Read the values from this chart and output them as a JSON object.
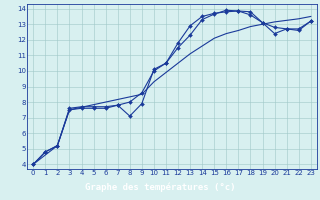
{
  "xlabel": "Graphe des températures (°c)",
  "bg_color": "#d8f0f0",
  "line_color": "#1a3a9a",
  "xlim": [
    -0.5,
    23.5
  ],
  "ylim": [
    3.7,
    14.3
  ],
  "xticks": [
    0,
    1,
    2,
    3,
    4,
    5,
    6,
    7,
    8,
    9,
    10,
    11,
    12,
    13,
    14,
    15,
    16,
    17,
    18,
    19,
    20,
    21,
    22,
    23
  ],
  "yticks": [
    4,
    5,
    6,
    7,
    8,
    9,
    10,
    11,
    12,
    13,
    14
  ],
  "line1_x": [
    0,
    1,
    2,
    3,
    4,
    5,
    6,
    7,
    8,
    9,
    10,
    11,
    12,
    13,
    14,
    15,
    16,
    17,
    18,
    19,
    20,
    21,
    22,
    23
  ],
  "line1_y": [
    4.0,
    4.8,
    5.2,
    7.6,
    7.7,
    7.7,
    7.7,
    7.8,
    7.1,
    7.9,
    10.1,
    10.5,
    11.8,
    12.9,
    13.5,
    13.7,
    13.8,
    13.85,
    13.8,
    13.1,
    12.8,
    12.7,
    12.7,
    13.2
  ],
  "line2_x": [
    0,
    1,
    2,
    3,
    4,
    5,
    6,
    7,
    8,
    9,
    10,
    11,
    12,
    13,
    14,
    15,
    16,
    17,
    18,
    19,
    20,
    21,
    22,
    23
  ],
  "line2_y": [
    4.0,
    4.8,
    5.2,
    7.5,
    7.6,
    7.6,
    7.6,
    7.8,
    8.0,
    8.6,
    10.0,
    10.5,
    11.5,
    12.3,
    13.3,
    13.65,
    13.9,
    13.85,
    13.6,
    13.1,
    12.4,
    12.7,
    12.6,
    13.2
  ],
  "line3_x": [
    0,
    2,
    3,
    9,
    10,
    11,
    12,
    13,
    14,
    15,
    16,
    17,
    18,
    19,
    20,
    21,
    22,
    23
  ],
  "line3_y": [
    4.0,
    5.2,
    7.5,
    8.5,
    9.3,
    9.9,
    10.5,
    11.1,
    11.6,
    12.1,
    12.4,
    12.6,
    12.85,
    13.0,
    13.15,
    13.25,
    13.35,
    13.5
  ],
  "grid_color": "#a0c8c8",
  "tick_fontsize": 5.0,
  "xlabel_fontsize": 6.5,
  "xlabel_bar_color": "#1a1aaa",
  "xlabel_text_color": "#ffffff"
}
